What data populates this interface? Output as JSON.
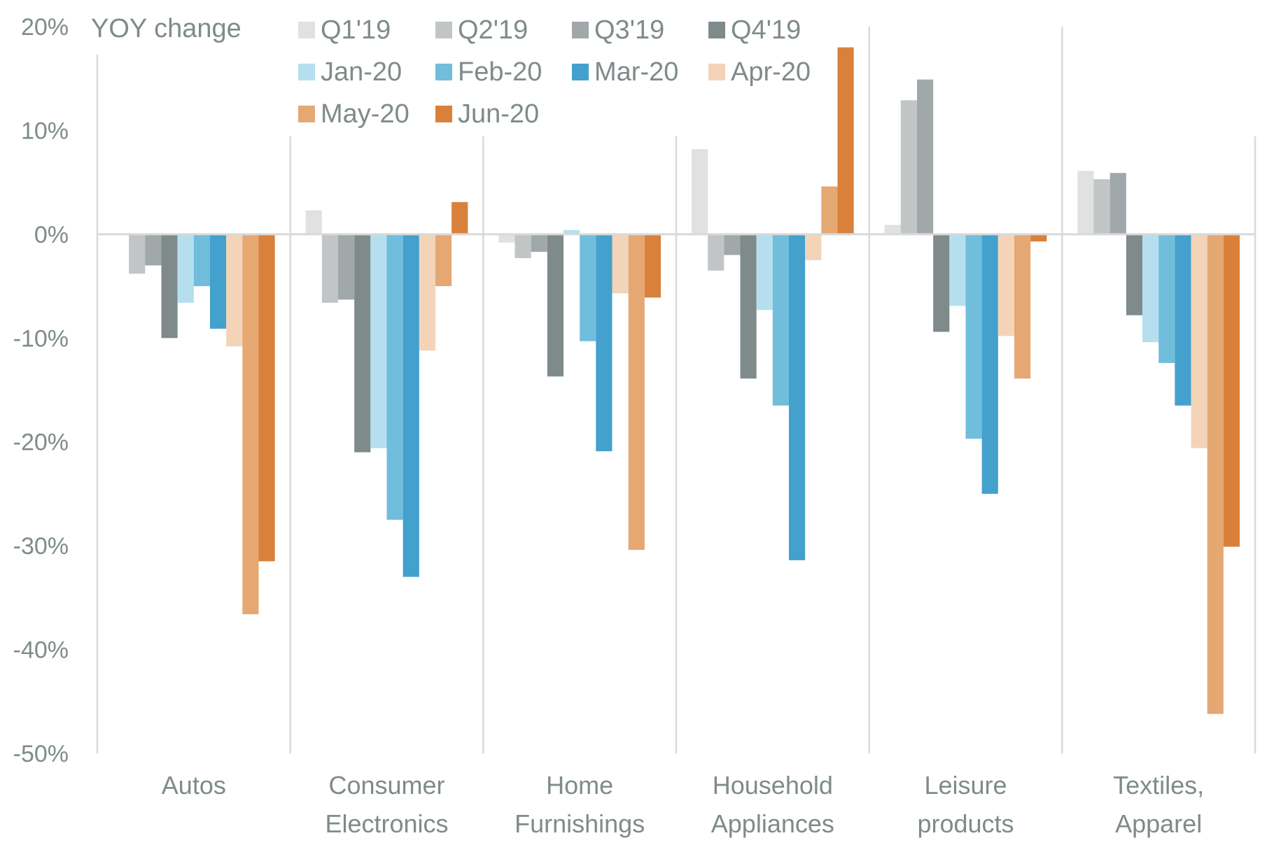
{
  "chart_data": {
    "type": "bar",
    "title": "YOY change",
    "xlabel": "",
    "ylabel": "",
    "ylim": [
      -0.5,
      0.2
    ],
    "yticks": [
      0.2,
      0.1,
      0.0,
      -0.1,
      -0.2,
      -0.3,
      -0.4,
      -0.5
    ],
    "ytick_labels": [
      "20%",
      "10%",
      "0%",
      "-10%",
      "-20%",
      "-30%",
      "-40%",
      "-50%"
    ],
    "grid": false,
    "legend_position": "top",
    "categories": [
      [
        "Autos"
      ],
      [
        "Consumer",
        "Electronics"
      ],
      [
        "Home",
        "Furnishings"
      ],
      [
        "Household",
        "Appliances"
      ],
      [
        "Leisure",
        "products"
      ],
      [
        "Textiles,",
        "Apparel"
      ]
    ],
    "series": [
      {
        "name": "Q1'19",
        "color": "#e0e1e1",
        "values": [
          0.001,
          0.023,
          -0.008,
          0.082,
          0.009,
          0.061
        ]
      },
      {
        "name": "Q2'19",
        "color": "#c1c5c6",
        "values": [
          -0.038,
          -0.066,
          -0.023,
          -0.035,
          0.129,
          0.053
        ]
      },
      {
        "name": "Q3'19",
        "color": "#a1a8aa",
        "values": [
          -0.03,
          -0.063,
          -0.017,
          -0.02,
          0.149,
          0.059
        ]
      },
      {
        "name": "Q4'19",
        "color": "#7f8b8b",
        "values": [
          -0.1,
          -0.21,
          -0.137,
          -0.139,
          -0.094,
          -0.078
        ]
      },
      {
        "name": "Jan-20",
        "color": "#b5dfee",
        "values": [
          -0.066,
          -0.206,
          0.004,
          -0.073,
          -0.069,
          -0.104
        ]
      },
      {
        "name": "Feb-20",
        "color": "#70bddc",
        "values": [
          -0.05,
          -0.275,
          -0.103,
          -0.165,
          -0.197,
          -0.124
        ]
      },
      {
        "name": "Mar-20",
        "color": "#44a0cc",
        "values": [
          -0.091,
          -0.33,
          -0.209,
          -0.314,
          -0.25,
          -0.165
        ]
      },
      {
        "name": "Apr-20",
        "color": "#f3d4b9",
        "values": [
          -0.108,
          -0.112,
          -0.057,
          -0.025,
          -0.098,
          -0.206
        ]
      },
      {
        "name": "May-20",
        "color": "#e5a873",
        "values": [
          -0.366,
          -0.05,
          -0.304,
          0.046,
          -0.139,
          -0.462
        ]
      },
      {
        "name": "Jun-20",
        "color": "#d9813a",
        "values": [
          -0.315,
          0.031,
          -0.061,
          0.18,
          -0.007,
          -0.301
        ]
      }
    ]
  }
}
